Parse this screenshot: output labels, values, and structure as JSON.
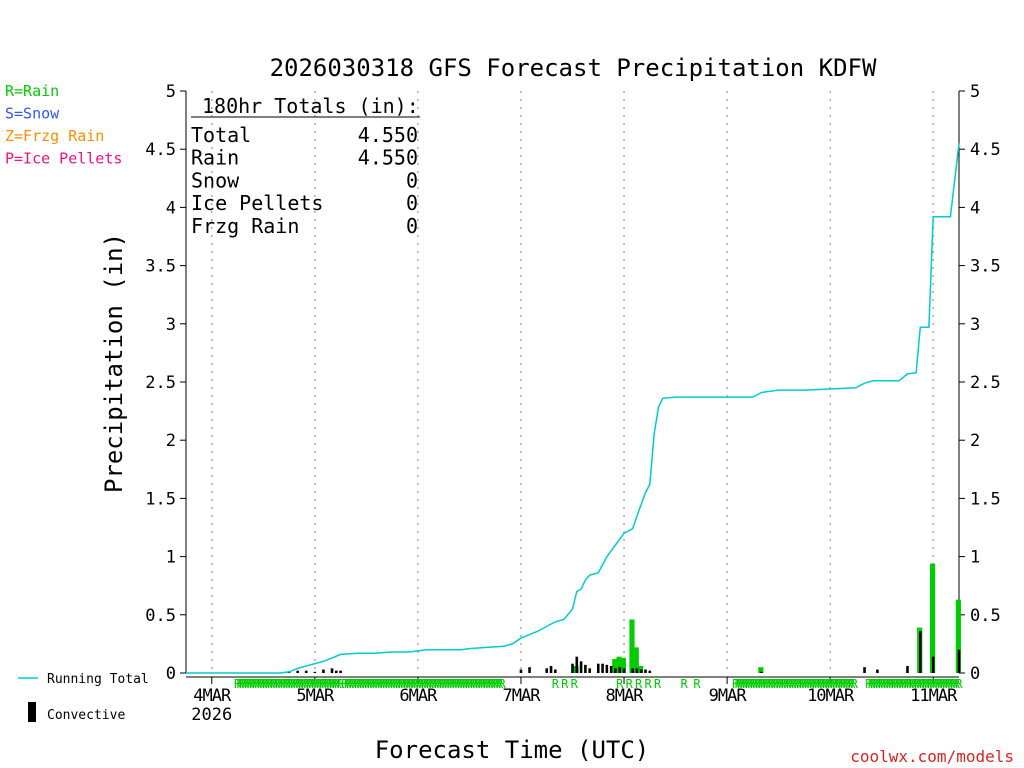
{
  "chart_data": {
    "type": "bar+line",
    "title": "2026030318 GFS Forecast Precipitation KDFW",
    "xlabel": "Forecast Time (UTC)",
    "ylabel": "Precipitation (in)",
    "ylim": [
      0,
      5
    ],
    "yticks": [
      "0",
      "0.5",
      "1",
      "1.5",
      "2",
      "2.5",
      "3",
      "3.5",
      "4",
      "4.5",
      "5"
    ],
    "xlim_hours": [
      0,
      180
    ],
    "x_unit": "forecast hour",
    "xticks": [
      {
        "label": "4MAR",
        "hour": 6,
        "sub": "2026"
      },
      {
        "label": "5MAR",
        "hour": 30
      },
      {
        "label": "6MAR",
        "hour": 54
      },
      {
        "label": "7MAR",
        "hour": 78
      },
      {
        "label": "8MAR",
        "hour": 102
      },
      {
        "label": "9MAR",
        "hour": 126
      },
      {
        "label": "10MAR",
        "hour": 150
      },
      {
        "label": "11MAR",
        "hour": 174
      }
    ],
    "legend": [
      {
        "text": "R=Rain",
        "color": "#00cc00"
      },
      {
        "text": "S=Snow",
        "color": "#3355ee"
      },
      {
        "text": "Z=Frzg Rain",
        "color": "#ff8c00"
      },
      {
        "text": "P=Ice Pellets",
        "color": "#ee1188"
      }
    ],
    "bottom_legend": [
      {
        "text": "Running Total",
        "color": "#00cccc",
        "kind": "line"
      },
      {
        "text": "Convective",
        "color": "#000000",
        "kind": "bar"
      }
    ],
    "totals": {
      "header": "180hr Totals (in):",
      "rows": [
        {
          "label": "Total",
          "value": "4.550"
        },
        {
          "label": "Rain",
          "value": "4.550"
        },
        {
          "label": "Snow",
          "value": "0"
        },
        {
          "label": "Ice Pellets",
          "value": "0"
        },
        {
          "label": "Frzg Rain",
          "value": "0"
        }
      ]
    },
    "series": [
      {
        "name": "Running Total",
        "color": "#00cccc",
        "points": [
          [
            0,
            0
          ],
          [
            22,
            0
          ],
          [
            24,
            0.01
          ],
          [
            26,
            0.04
          ],
          [
            28,
            0.06
          ],
          [
            30,
            0.08
          ],
          [
            32,
            0.1
          ],
          [
            34,
            0.13
          ],
          [
            36,
            0.16
          ],
          [
            40,
            0.17
          ],
          [
            44,
            0.17
          ],
          [
            48,
            0.18
          ],
          [
            52,
            0.18
          ],
          [
            54,
            0.19
          ],
          [
            56,
            0.2
          ],
          [
            60,
            0.2
          ],
          [
            64,
            0.2
          ],
          [
            66,
            0.21
          ],
          [
            70,
            0.22
          ],
          [
            74,
            0.23
          ],
          [
            76,
            0.25
          ],
          [
            78,
            0.3
          ],
          [
            80,
            0.33
          ],
          [
            82,
            0.36
          ],
          [
            84,
            0.4
          ],
          [
            86,
            0.44
          ],
          [
            88,
            0.46
          ],
          [
            90,
            0.55
          ],
          [
            91,
            0.7
          ],
          [
            92,
            0.72
          ],
          [
            93,
            0.8
          ],
          [
            94,
            0.84
          ],
          [
            96,
            0.86
          ],
          [
            98,
            1.0
          ],
          [
            100,
            1.1
          ],
          [
            102,
            1.2
          ],
          [
            104,
            1.24
          ],
          [
            106,
            1.45
          ],
          [
            107,
            1.55
          ],
          [
            108,
            1.62
          ],
          [
            109,
            2.05
          ],
          [
            110,
            2.28
          ],
          [
            111,
            2.36
          ],
          [
            114,
            2.37
          ],
          [
            120,
            2.37
          ],
          [
            126,
            2.37
          ],
          [
            132,
            2.37
          ],
          [
            134,
            2.41
          ],
          [
            138,
            2.43
          ],
          [
            144,
            2.43
          ],
          [
            150,
            2.44
          ],
          [
            156,
            2.45
          ],
          [
            158,
            2.49
          ],
          [
            160,
            2.51
          ],
          [
            166,
            2.51
          ],
          [
            168,
            2.57
          ],
          [
            170,
            2.58
          ],
          [
            171,
            2.97
          ],
          [
            173,
            2.97
          ],
          [
            174,
            3.92
          ],
          [
            178,
            3.92
          ],
          [
            180,
            4.55
          ]
        ]
      },
      {
        "name": "Rain (interval)",
        "color": "#00cc00",
        "points": [
          [
            91,
            0.06
          ],
          [
            100,
            0.12
          ],
          [
            101,
            0.14
          ],
          [
            102,
            0.13
          ],
          [
            104,
            0.46
          ],
          [
            105,
            0.22
          ],
          [
            106,
            0.06
          ],
          [
            134,
            0.05
          ],
          [
            171,
            0.39
          ],
          [
            174,
            0.94
          ],
          [
            180,
            0.63
          ]
        ]
      },
      {
        "name": "Convective",
        "color": "#000000",
        "points": [
          [
            24,
            0.01
          ],
          [
            26,
            0.02
          ],
          [
            28,
            0.02
          ],
          [
            30,
            0.01
          ],
          [
            32,
            0.03
          ],
          [
            34,
            0.04
          ],
          [
            35,
            0.02
          ],
          [
            36,
            0.02
          ],
          [
            78,
            0.03
          ],
          [
            80,
            0.05
          ],
          [
            84,
            0.04
          ],
          [
            85,
            0.06
          ],
          [
            86,
            0.03
          ],
          [
            90,
            0.08
          ],
          [
            91,
            0.14
          ],
          [
            92,
            0.1
          ],
          [
            93,
            0.07
          ],
          [
            94,
            0.04
          ],
          [
            96,
            0.08
          ],
          [
            97,
            0.08
          ],
          [
            98,
            0.07
          ],
          [
            99,
            0.06
          ],
          [
            100,
            0.04
          ],
          [
            101,
            0.05
          ],
          [
            102,
            0.04
          ],
          [
            104,
            0.04
          ],
          [
            105,
            0.04
          ],
          [
            106,
            0.03
          ],
          [
            107,
            0.03
          ],
          [
            108,
            0.02
          ],
          [
            134,
            0.01
          ],
          [
            158,
            0.05
          ],
          [
            161,
            0.03
          ],
          [
            168,
            0.06
          ],
          [
            171,
            0.36
          ],
          [
            174,
            0.14
          ],
          [
            180,
            0.2
          ]
        ]
      }
    ],
    "precip_type_marks": [
      {
        "type": "R",
        "ranges": [
          [
            12,
            36
          ],
          [
            37,
            74
          ],
          [
            86,
            92
          ],
          [
            101,
            110
          ],
          [
            116,
            117
          ],
          [
            119,
            120
          ],
          [
            128,
            156
          ],
          [
            159,
            180
          ]
        ]
      }
    ]
  },
  "credit": "coolwx.com/models"
}
